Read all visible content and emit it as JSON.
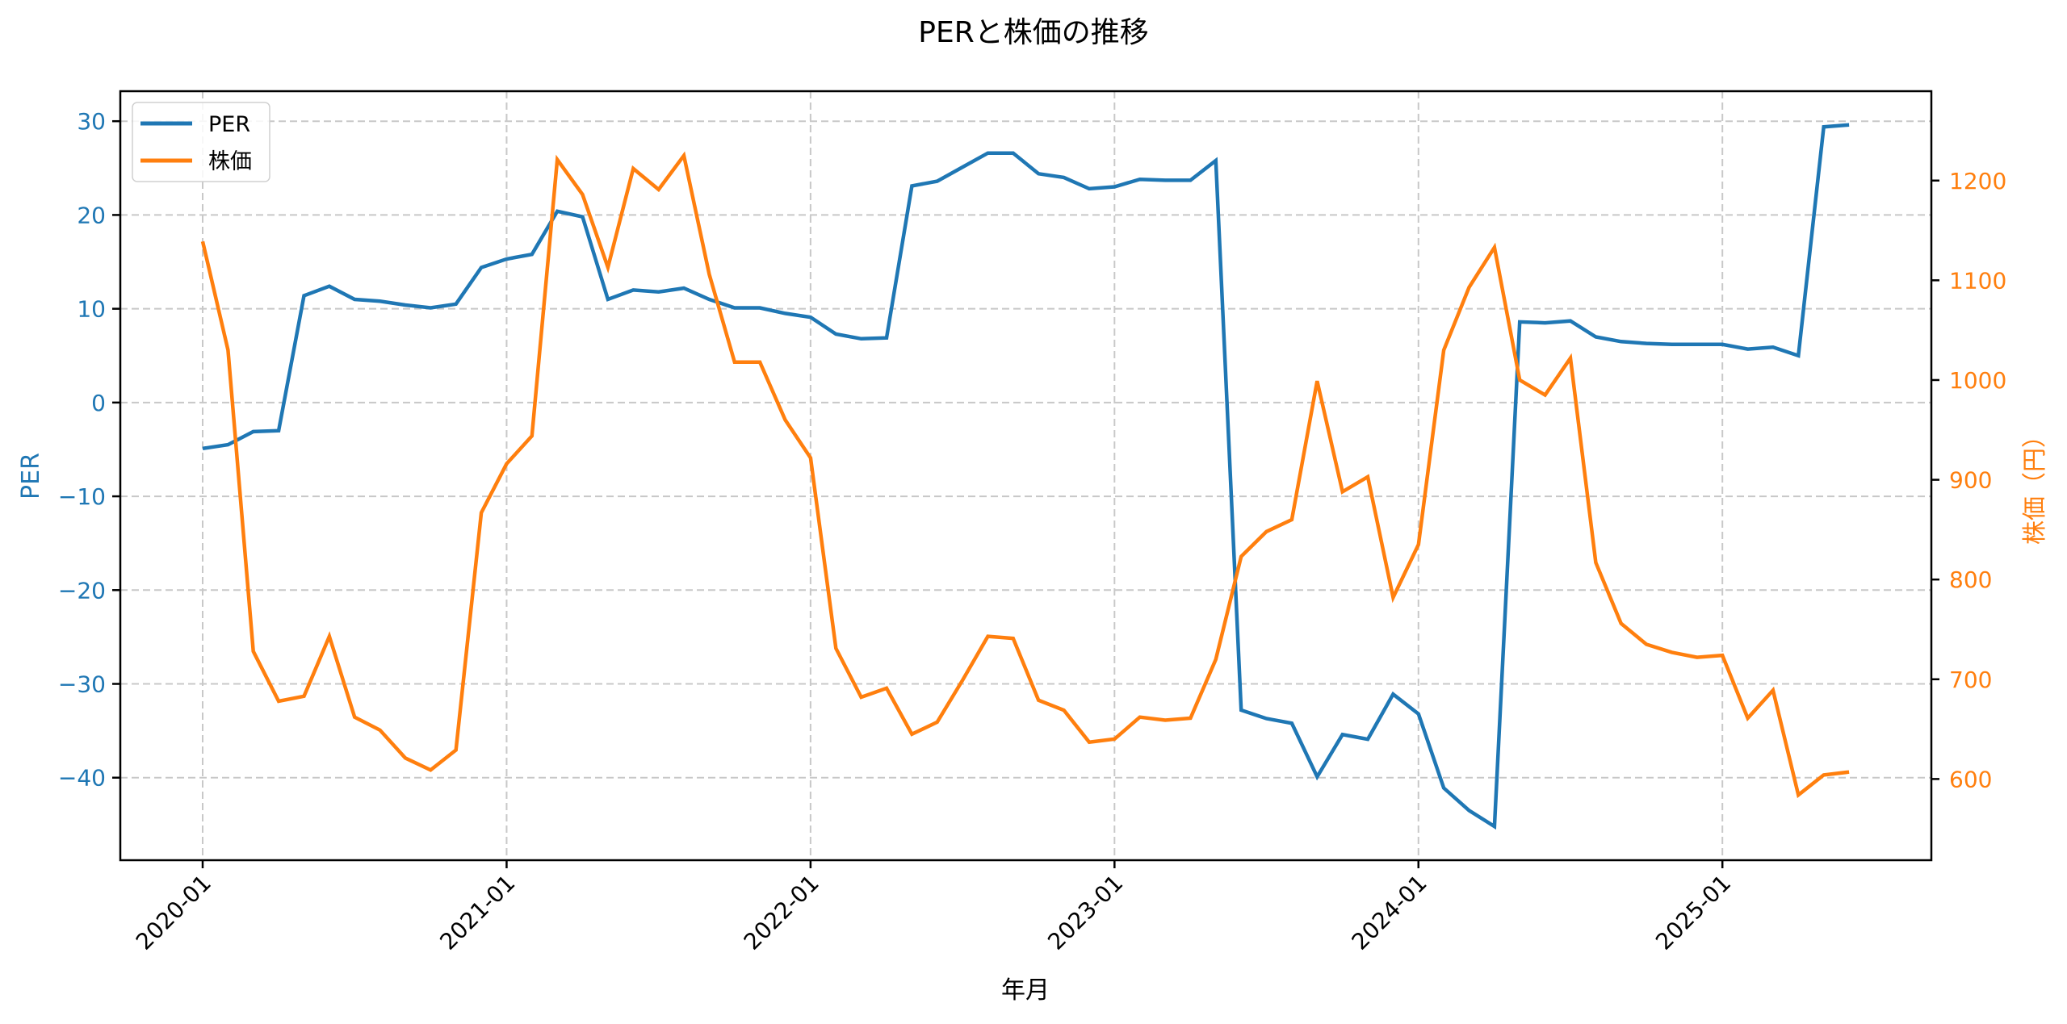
{
  "chart_data": {
    "type": "line",
    "title": "PERと株価の推移",
    "xlabel": "年月",
    "ylabel": "PER",
    "ylabel_right": "株価（円）",
    "x_tick_labels": [
      "2020-01",
      "2021-01",
      "2022-01",
      "2023-01",
      "2024-01",
      "2025-01"
    ],
    "y_ticks_left": [
      30,
      20,
      10,
      0,
      -10,
      -20,
      -30,
      -40
    ],
    "y_ticks_left_labels": [
      "30",
      "20",
      "10",
      "0",
      "−10",
      "−20",
      "−30",
      "−40"
    ],
    "y_ticks_right": [
      1200,
      1100,
      1000,
      900,
      800,
      700,
      600
    ],
    "ylim": [
      -48.8,
      33.2
    ],
    "ylim_right": [
      518.6,
      1289.6
    ],
    "grid": true,
    "legend_position": "upper left",
    "x": [
      "2020-01",
      "2020-02",
      "2020-03",
      "2020-04",
      "2020-05",
      "2020-06",
      "2020-07",
      "2020-08",
      "2020-09",
      "2020-10",
      "2020-11",
      "2020-12",
      "2021-01",
      "2021-02",
      "2021-03",
      "2021-04",
      "2021-05",
      "2021-06",
      "2021-07",
      "2021-08",
      "2021-09",
      "2021-10",
      "2021-11",
      "2021-12",
      "2022-01",
      "2022-02",
      "2022-03",
      "2022-04",
      "2022-05",
      "2022-06",
      "2022-07",
      "2022-08",
      "2022-09",
      "2022-10",
      "2022-11",
      "2022-12",
      "2023-01",
      "2023-02",
      "2023-03",
      "2023-04",
      "2023-05",
      "2023-06",
      "2023-07",
      "2023-08",
      "2023-09",
      "2023-10",
      "2023-11",
      "2023-12",
      "2024-01",
      "2024-02",
      "2024-03",
      "2024-04",
      "2024-05",
      "2024-06",
      "2024-07",
      "2024-08",
      "2024-09",
      "2024-10",
      "2024-11",
      "2024-12",
      "2025-01",
      "2025-02",
      "2025-03",
      "2025-04",
      "2025-05",
      "2025-06"
    ],
    "series": [
      {
        "name": "PER",
        "axis": "left",
        "color": "#1f77b4",
        "values": [
          -4.9,
          -4.5,
          -3.1,
          -3.0,
          11.4,
          12.4,
          11.0,
          10.8,
          10.4,
          10.1,
          10.5,
          14.4,
          15.3,
          15.8,
          20.4,
          19.8,
          11.0,
          12.0,
          11.8,
          12.2,
          11.0,
          10.1,
          10.1,
          9.5,
          9.1,
          7.3,
          6.8,
          6.9,
          23.1,
          23.6,
          25.1,
          26.6,
          26.6,
          24.4,
          24.0,
          22.8,
          23.0,
          23.8,
          23.7,
          23.7,
          25.8,
          -32.8,
          -33.7,
          -34.2,
          -39.9,
          -35.4,
          -35.9,
          -31.1,
          -33.2,
          -41.1,
          -43.5,
          -45.2,
          8.6,
          8.5,
          8.7,
          7.0,
          6.5,
          6.3,
          6.2,
          6.2,
          6.2,
          5.7,
          5.9,
          5.0,
          29.4,
          29.6
        ]
      },
      {
        "name": "株価",
        "axis": "right",
        "color": "#ff7f0e",
        "values": [
          1139,
          1030,
          728,
          678,
          683,
          743,
          662,
          649,
          621,
          609,
          629,
          867,
          916,
          944,
          1221,
          1186,
          1113,
          1212,
          1191,
          1225,
          1106,
          1018,
          1018,
          960,
          922,
          731,
          682,
          691,
          645,
          657,
          699,
          743,
          741,
          679,
          669,
          637,
          640,
          662,
          659,
          661,
          720,
          823,
          848,
          860,
          999,
          888,
          903,
          782,
          835,
          1030,
          1093,
          1133,
          1000,
          985,
          1022,
          817,
          756,
          735,
          727,
          722,
          724,
          661,
          689,
          584,
          604,
          607
        ]
      }
    ]
  },
  "legend": {
    "items": [
      {
        "label": "PER",
        "color": "#1f77b4"
      },
      {
        "label": "株価",
        "color": "#ff7f0e"
      }
    ]
  },
  "colors": {
    "per": "#1f77b4",
    "price": "#ff7f0e",
    "grid": "#c8c8c8",
    "axis": "#000000"
  }
}
